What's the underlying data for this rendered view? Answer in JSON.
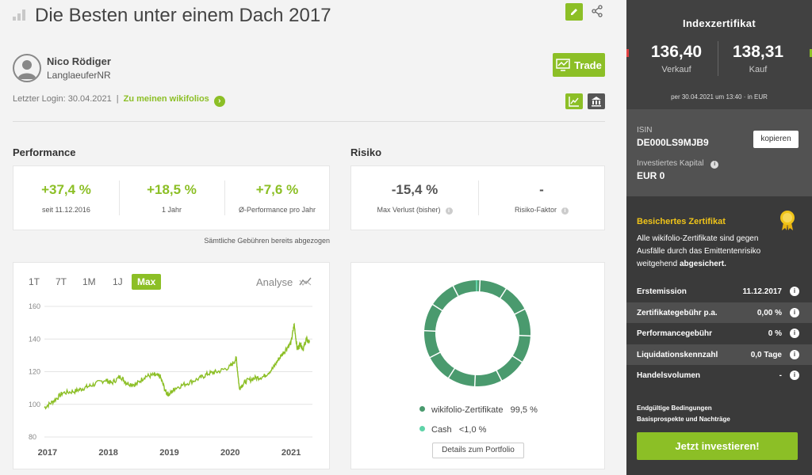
{
  "header": {
    "title": "Die Besten unter einem Dach 2017"
  },
  "user": {
    "name": "Nico Rödiger",
    "handle": "LanglaeuferNR",
    "last_login": "Letzter Login: 30.04.2021",
    "link": "Zu meinen wikifolios"
  },
  "actions": {
    "trade_label": "Trade"
  },
  "performance": {
    "heading": "Performance",
    "stats": [
      {
        "value": "+37,4 %",
        "label": "seit 11.12.2016"
      },
      {
        "value": "+18,5 %",
        "label": "1 Jahr"
      },
      {
        "value": "+7,6 %",
        "label": "Ø-Performance pro Jahr"
      }
    ],
    "fees_note": "Sämtliche Gebühren bereits abgezogen"
  },
  "risk": {
    "heading": "Risiko",
    "stats": [
      {
        "value": "-15,4 %",
        "label": "Max Verlust (bisher)"
      },
      {
        "value": "-",
        "label": "Risiko-Faktor"
      }
    ]
  },
  "chart": {
    "tabs": [
      "1T",
      "7T",
      "1M",
      "1J",
      "Max"
    ],
    "active_tab": "Max",
    "analyse_label": "Analyse"
  },
  "chart_data": {
    "type": "line",
    "title": "",
    "xlabel": "",
    "ylabel": "",
    "ylim": [
      80,
      160
    ],
    "yticks": [
      160,
      140,
      120,
      100,
      80
    ],
    "xticks": [
      "2017",
      "2018",
      "2019",
      "2020",
      "2021"
    ],
    "series": [
      {
        "color": "#8cbf26",
        "x": [
          2016.95,
          2017.1,
          2017.25,
          2017.45,
          2017.6,
          2017.75,
          2017.95,
          2018.05,
          2018.2,
          2018.3,
          2018.45,
          2018.6,
          2018.75,
          2018.85,
          2018.95,
          2019.0,
          2019.1,
          2019.3,
          2019.5,
          2019.65,
          2019.8,
          2020.0,
          2020.1,
          2020.15,
          2020.25,
          2020.4,
          2020.55,
          2020.7,
          2020.8,
          2020.9,
          2021.0,
          2021.05,
          2021.1,
          2021.15,
          2021.2,
          2021.25,
          2021.3
        ],
        "y": [
          98,
          102,
          107,
          108,
          110,
          112,
          115,
          113,
          117,
          113,
          112,
          117,
          118,
          117,
          107,
          106,
          110,
          113,
          116,
          119,
          120,
          123,
          128,
          110,
          114,
          116,
          117,
          122,
          128,
          133,
          138,
          149,
          134,
          137,
          134,
          140,
          138
        ]
      }
    ]
  },
  "portfolio": {
    "chart_data": {
      "type": "pie",
      "categories": [
        "wikifolio-Zertifikate",
        "Cash"
      ],
      "values": [
        99.5,
        0.5
      ],
      "colors": [
        "#4a9a6e",
        "#5fd3a8"
      ]
    },
    "legend": [
      {
        "label": "wikifolio-Zertifikate",
        "value": "99,5 %",
        "color": "#4a9a6e"
      },
      {
        "label": "Cash",
        "value": "<1,0 %",
        "color": "#5fd3a8"
      }
    ],
    "details_button": "Details zum Portfolio"
  },
  "sidebar": {
    "title": "Indexzertifikat",
    "sell_value": "136,40",
    "sell_label": "Verkauf",
    "buy_value": "138,31",
    "buy_label": "Kauf",
    "as_of": "per 30.04.2021 um 13:40 · in EUR",
    "isin_label": "ISIN",
    "isin": "DE000LS9MJB9",
    "copy_label": "kopieren",
    "capital_label": "Investiertes Kapital",
    "capital": "EUR 0",
    "secured_title": "Besichertes Zertifikat",
    "secured_text": "Alle wikifolio-Zertifikate sind gegen Ausfälle durch das Emittentenrisiko weitgehend",
    "secured_bold": "abgesichert.",
    "rows": [
      {
        "key": "Erstemission",
        "value": "11.12.2017"
      },
      {
        "key": "Zertifikategebühr p.a.",
        "value": "0,00 %"
      },
      {
        "key": "Performancegebühr",
        "value": "0 %"
      },
      {
        "key": "Liquidationskennzahl",
        "value": "0,0 Tage"
      },
      {
        "key": "Handelsvolumen",
        "value": "-"
      }
    ],
    "link1": "Endgültige Bedingungen",
    "link2": "Basisprospekte und Nachträge",
    "invest_button": "Jetzt investieren!"
  },
  "colors": {
    "accent": "#8cbf26",
    "sidebar": "#3a3a3a",
    "gold": "#f0c419"
  }
}
